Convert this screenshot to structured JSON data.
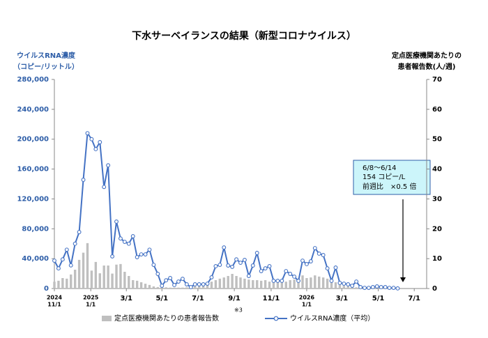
{
  "chart_data": {
    "type": "bar+line",
    "title": "下水サーベイランスの結果（新型コロナウイルス）",
    "y_label": [
      "ウイルスRNA濃度",
      "（コピー/リットル）"
    ],
    "y2_label": [
      "定点医療機関あたりの",
      "患者報告数(人/週)"
    ],
    "annotation": [
      "6/8～6/14",
      "154 コピー/L",
      "前週比　×0.5 倍"
    ],
    "legend_note": "※3",
    "x": [
      0,
      1,
      2,
      3,
      4,
      5,
      6,
      7,
      8,
      9,
      10,
      11,
      12,
      13,
      14,
      15,
      16,
      17,
      18,
      19,
      20,
      21,
      22,
      23,
      24,
      25,
      26,
      27,
      28,
      29,
      30,
      31,
      32,
      33,
      34,
      35,
      36,
      37,
      38,
      39,
      40,
      41,
      42,
      43,
      44,
      45,
      46,
      47,
      48,
      49,
      50,
      51,
      52,
      53,
      54,
      55,
      56,
      57,
      58,
      59,
      60,
      61,
      62,
      63,
      64,
      65,
      66,
      67,
      68,
      69,
      70,
      71,
      72,
      73,
      74,
      75,
      76,
      77,
      78,
      79,
      80,
      81,
      82,
      83
    ],
    "xlim": [
      0,
      90
    ],
    "xticks": [
      {
        "value": 0,
        "label": "11/1",
        "year": "2024"
      },
      {
        "value": 8.8,
        "label": "1/1",
        "year": "2025"
      },
      {
        "value": 17.4,
        "label": "3/1"
      },
      {
        "value": 26,
        "label": "5/1"
      },
      {
        "value": 34.7,
        "label": "7/1"
      },
      {
        "value": 43.5,
        "label": "9/1"
      },
      {
        "value": 52.4,
        "label": "11/1"
      },
      {
        "value": 61,
        "label": "1/1",
        "year": "2026"
      },
      {
        "value": 69.5,
        "label": "3/1"
      },
      {
        "value": 78.3,
        "label": "5/1"
      },
      {
        "value": 87,
        "label": "7/1"
      }
    ],
    "ylim": [
      0,
      280000
    ],
    "yticks": [
      0,
      {
        "value": 40000,
        "label": "40,000"
      },
      {
        "value": 80000,
        "label": "80,000"
      },
      {
        "value": 120000,
        "label": "120,000"
      },
      {
        "value": 160000,
        "label": "160,000"
      },
      {
        "value": 200000,
        "label": "200,000"
      },
      {
        "value": 240000,
        "label": "240,000"
      },
      {
        "value": 280000,
        "label": "280,000"
      }
    ],
    "y2lim": [
      0,
      70
    ],
    "y2ticks": [
      0,
      10,
      20,
      30,
      40,
      50,
      60,
      70
    ],
    "series": [
      {
        "name": "定点医療機関あたりの患者報告数",
        "type": "bar",
        "axis": "y2",
        "color": "#bfbfbf",
        "values": [
          2.3,
          2.6,
          3.5,
          3.3,
          4.7,
          6.3,
          9.6,
          12,
          15.2,
          6,
          8.9,
          5.1,
          7.7,
          7.7,
          5,
          8,
          8.2,
          5.6,
          4.2,
          2.8,
          2.6,
          2.1,
          1.6,
          1.2,
          0.7,
          0.5,
          0.4,
          0.4,
          0.3,
          0.3,
          0.3,
          0.3,
          0.4,
          0.5,
          0.7,
          0.9,
          1.2,
          1.9,
          2.3,
          2.8,
          3.3,
          3.7,
          4.2,
          4.9,
          4.2,
          3.7,
          3.3,
          3,
          2.8,
          2.8,
          2.6,
          2.8,
          2.3,
          2.6,
          2.3,
          2.6,
          2.3,
          2.8,
          3,
          3.3,
          4.4,
          3.5,
          3.7,
          4.4,
          4,
          3.7,
          3.3,
          2.6,
          2.1,
          1.4,
          0.9,
          0.7,
          0.5,
          0.4,
          0.3,
          0.3,
          0.2,
          0.2,
          0.2,
          0.1,
          0.1,
          0.1,
          0.1,
          0.1
        ]
      },
      {
        "name": "ウイルスRNA濃度（平均）",
        "type": "line",
        "axis": "y",
        "color": "#4472c4",
        "values": [
          37300,
          27000,
          39000,
          52000,
          31000,
          60000,
          75600,
          145600,
          208000,
          200000,
          186700,
          196000,
          136000,
          165000,
          43000,
          89600,
          67000,
          62500,
          60000,
          70000,
          42000,
          45700,
          45700,
          52000,
          31700,
          19600,
          3700,
          11000,
          14000,
          4700,
          9300,
          13000,
          5600,
          1900,
          5600,
          5600,
          5600,
          6500,
          15000,
          29900,
          31700,
          55000,
          30800,
          29000,
          39000,
          34500,
          38300,
          16800,
          30800,
          47600,
          23300,
          27000,
          29900,
          10300,
          10300,
          10300,
          23300,
          19600,
          15900,
          10300,
          37300,
          32700,
          36400,
          54100,
          46700,
          44800,
          27000,
          10300,
          28000,
          7500,
          6500,
          5600,
          3700,
          9300,
          1900,
          900,
          900,
          1900,
          2800,
          1900,
          1900,
          900,
          900,
          154
        ]
      }
    ]
  }
}
